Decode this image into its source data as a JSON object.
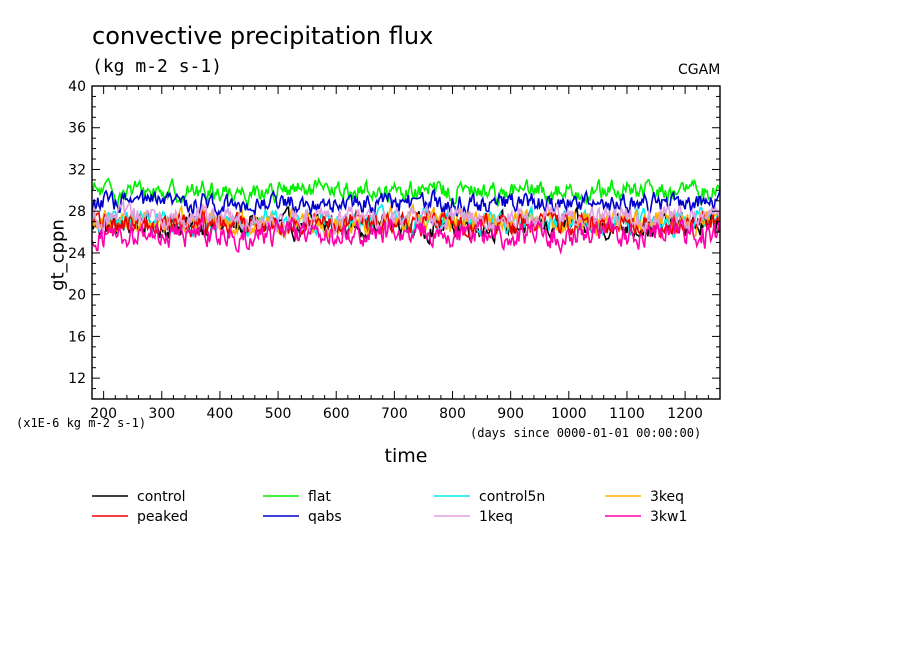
{
  "chart_data": {
    "type": "line",
    "title": "convective precipitation flux",
    "subtitle": "(kg m-2 s-1)",
    "source_label": "CGAM",
    "xlabel": "time",
    "ylabel": "gt_cppn",
    "x_units_note": "(days since 0000-01-01 00:00:00)",
    "y_units_note": "(x1E-6 kg m-2 s-1)",
    "xlim": [
      180,
      1260
    ],
    "ylim": [
      10,
      40
    ],
    "x_ticks": [
      200,
      300,
      400,
      500,
      600,
      700,
      800,
      900,
      1000,
      1100,
      1200
    ],
    "y_ticks": [
      12,
      16,
      20,
      24,
      28,
      32,
      36,
      40
    ],
    "grid": false,
    "legend_position": "bottom",
    "series": [
      {
        "name": "control",
        "color": "#000000",
        "mean": 26.6,
        "amplitude": 1.3,
        "x": [
          180,
          1260
        ]
      },
      {
        "name": "flat",
        "color": "#00ee00",
        "mean": 29.9,
        "amplitude": 1.1,
        "x": [
          180,
          1260
        ]
      },
      {
        "name": "control5n",
        "color": "#00eeee",
        "mean": 27.0,
        "amplitude": 1.2,
        "x": [
          180,
          1260
        ]
      },
      {
        "name": "3keq",
        "color": "#ffb000",
        "mean": 27.1,
        "amplitude": 1.3,
        "x": [
          180,
          1260
        ]
      },
      {
        "name": "peaked",
        "color": "#ee0000",
        "mean": 26.8,
        "amplitude": 1.2,
        "x": [
          180,
          1260
        ]
      },
      {
        "name": "qabs",
        "color": "#0000cc",
        "mean": 28.8,
        "amplitude": 1.1,
        "x": [
          180,
          1260
        ]
      },
      {
        "name": "1keq",
        "color": "#e0a0e0",
        "mean": 27.3,
        "amplitude": 1.2,
        "x": [
          180,
          1260
        ]
      },
      {
        "name": "3kw1",
        "color": "#ff00aa",
        "mean": 25.8,
        "amplitude": 1.4,
        "x": [
          180,
          1260
        ]
      }
    ]
  }
}
